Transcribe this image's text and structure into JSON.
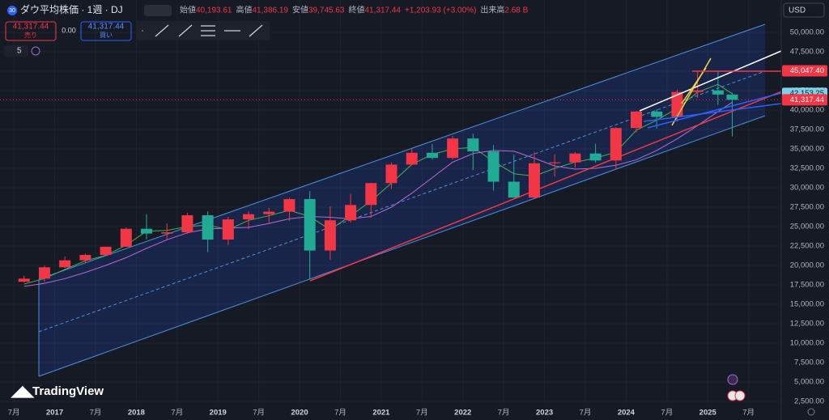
{
  "chart_data": {
    "type": "candlestick",
    "title": "ダウ平均株価 · 1週 · DJ",
    "symbol_badge": "30",
    "ohlc_legend": [
      {
        "label": "始値",
        "value": "40,193.61"
      },
      {
        "label": "高値",
        "value": "41,386.19"
      },
      {
        "label": "安値",
        "value": "39,745.63"
      },
      {
        "label": "終値",
        "value": "41,317.44"
      },
      {
        "label": "",
        "value": "+1,203.93 (+3.00%)"
      },
      {
        "label": "出来高",
        "value": "2.68 B"
      }
    ],
    "sell": {
      "price": "41,317.44",
      "label": "売り"
    },
    "spread": "0.00",
    "buy": {
      "price": "41,317.44",
      "label": "買い"
    },
    "indicator_count": "5",
    "currency": "USD",
    "brand": "TradingView",
    "up_color": "#f23645",
    "down_color": "#22ab94",
    "x": [
      2016.625,
      2016.875,
      2017.125,
      2017.375,
      2017.625,
      2017.875,
      2018.125,
      2018.375,
      2018.625,
      2018.875,
      2019.125,
      2019.375,
      2019.625,
      2019.875,
      2020.125,
      2020.375,
      2020.625,
      2020.875,
      2021.125,
      2021.375,
      2021.625,
      2021.875,
      2022.125,
      2022.375,
      2022.625,
      2022.875,
      2023.125,
      2023.375,
      2023.625,
      2023.875,
      2024.125,
      2024.375,
      2024.625,
      2024.875,
      2025.125,
      2025.3
    ],
    "open": [
      17900,
      18300,
      19760,
      20660,
      21350,
      22400,
      24720,
      24100,
      24270,
      26460,
      23330,
      25930,
      26600,
      26920,
      28540,
      21920,
      25810,
      27780,
      30600,
      32980,
      34500,
      33840,
      36340,
      34680,
      30780,
      28730,
      33150,
      33270,
      34410,
      33510,
      37690,
      39810,
      39120,
      42330,
      42540,
      42000
    ],
    "high": [
      18670,
      19990,
      21170,
      21530,
      22420,
      24880,
      26620,
      25400,
      26770,
      26950,
      26240,
      26960,
      27400,
      28700,
      29570,
      27580,
      29200,
      30640,
      33260,
      35090,
      35630,
      36680,
      36950,
      35490,
      34280,
      34600,
      34340,
      34590,
      35680,
      37800,
      39890,
      40080,
      42630,
      45070,
      45050,
      42240
    ],
    "low": [
      17800,
      17880,
      19680,
      20380,
      21280,
      22400,
      23360,
      23340,
      24080,
      21710,
      22640,
      24680,
      25340,
      25740,
      18210,
      20730,
      25520,
      26140,
      29850,
      32930,
      33610,
      33610,
      32270,
      29650,
      28720,
      28660,
      31430,
      32580,
      33200,
      32330,
      37120,
      37610,
      38500,
      41560,
      40660,
      36610
    ],
    "close": [
      18300,
      19760,
      20660,
      21350,
      22400,
      24720,
      24100,
      24270,
      26460,
      23330,
      25930,
      26600,
      26920,
      28540,
      21920,
      25810,
      27780,
      30600,
      32980,
      34500,
      33840,
      36340,
      34680,
      30780,
      28730,
      33150,
      33270,
      34410,
      33510,
      37690,
      39810,
      39120,
      42330,
      42540,
      42000,
      41317.44
    ],
    "series": [
      {
        "color": "#4caf50",
        "values": [
          17600,
          18300,
          19500,
          20600,
          21300,
          22600,
          24400,
          24500,
          25000,
          25200,
          24600,
          25800,
          26400,
          27100,
          26300,
          24600,
          26400,
          28300,
          30600,
          33000,
          34300,
          35000,
          35200,
          33400,
          31800,
          31500,
          32500,
          33300,
          33800,
          34600,
          37400,
          38700,
          40200,
          42300,
          43300,
          42100
        ]
      },
      {
        "color": "#b36ad6",
        "values": [
          17300,
          17700,
          18300,
          19100,
          20000,
          21000,
          22200,
          23300,
          24200,
          24700,
          24800,
          24900,
          25400,
          26000,
          26300,
          26200,
          26000,
          26300,
          27500,
          29300,
          31300,
          33300,
          34400,
          34800,
          34700,
          33800,
          32800,
          32400,
          32500,
          32900,
          33600,
          34800,
          36300,
          38000,
          39800,
          41000
        ]
      }
    ],
    "xlim": [
      2016.33,
      2025.9
    ],
    "xticks": [
      {
        "value": 2016.5,
        "label": "7月"
      },
      2017,
      {
        "value": 2017.5,
        "label": "7月"
      },
      2018,
      {
        "value": 2018.5,
        "label": "7月"
      },
      2019,
      {
        "value": 2019.5,
        "label": "7月"
      },
      2020,
      {
        "value": 2020.5,
        "label": "7月"
      },
      2021,
      {
        "value": 2021.5,
        "label": "7月"
      },
      2022,
      {
        "value": 2022.5,
        "label": "7月"
      },
      2023,
      {
        "value": 2023.5,
        "label": "7月"
      },
      2024,
      {
        "value": 2024.5,
        "label": "7月"
      },
      2025,
      {
        "value": 2025.5,
        "label": "7月"
      }
    ],
    "ylim": [
      1250,
      54167
    ],
    "yticks": [
      {
        "value": 2500,
        "label": "2,500.00"
      },
      {
        "value": 5000,
        "label": "5,000.00"
      },
      {
        "value": 7500,
        "label": "7,500.00"
      },
      {
        "value": 10000,
        "label": "10,000.00"
      },
      {
        "value": 12500,
        "label": "12,500.00"
      },
      {
        "value": 15000,
        "label": "15,000.00"
      },
      {
        "value": 17500,
        "label": "17,500.00"
      },
      {
        "value": 20000,
        "label": "20,000.00"
      },
      {
        "value": 22500,
        "label": "22,500.00"
      },
      {
        "value": 25000,
        "label": "25,000.00"
      },
      {
        "value": 27500,
        "label": "27,500.00"
      },
      {
        "value": 30000,
        "label": "30,000.00"
      },
      {
        "value": 32500,
        "label": "32,500.00"
      },
      {
        "value": 35000,
        "label": "35,000.00"
      },
      {
        "value": 37500,
        "label": "37,500.00"
      },
      {
        "value": 40000,
        "label": "40,000.00"
      },
      {
        "value": 42500,
        "label": "42,500.00"
      },
      {
        "value": 45000,
        "label": "45,000.00"
      },
      {
        "value": 47500,
        "label": "47,500.00"
      },
      {
        "value": 50000,
        "label": "50,000.00"
      }
    ],
    "grid": true,
    "price_labels": [
      {
        "value": 45047.4,
        "label": "45,047.40",
        "color": "#f23645"
      },
      {
        "value": 42153.25,
        "label": "42,153.25",
        "color": "#7fd0e8"
      },
      {
        "value": 41317.44,
        "label": "41,317.44",
        "color": "#f23645"
      }
    ]
  }
}
